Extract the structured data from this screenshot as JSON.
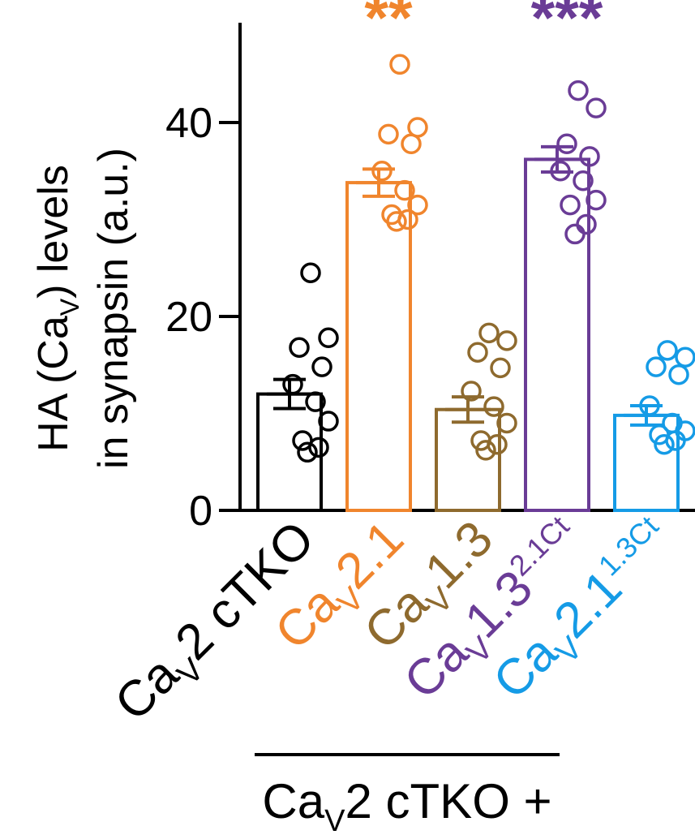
{
  "chart_data": {
    "type": "bar",
    "ylabel_line1": "HA (Ca",
    "ylabel_line1_sub": "V",
    "ylabel_line1_end": ") levels",
    "ylabel_line2": "in synapsin (a.u.)",
    "ylim": [
      0,
      50
    ],
    "yticks": [
      0,
      20,
      40
    ],
    "grid": false,
    "group_label": {
      "main": "Ca",
      "sub": "V",
      "end": "2 cTKO +"
    },
    "categories": [
      {
        "id": "cTKO",
        "label_main": "Ca",
        "label_sub": "V",
        "label_end": "2 cTKO",
        "label_sup": "",
        "color": "#000000",
        "mean": 12.0,
        "sem": 1.5,
        "significance": "",
        "points": [
          24.5,
          17.8,
          16.8,
          14.8,
          13.0,
          11.2,
          9.2,
          7.2,
          6.5,
          6.0
        ]
      },
      {
        "id": "Cav2.1",
        "label_main": "Ca",
        "label_sub": "V",
        "label_end": "2.1",
        "label_sup": "",
        "color": "#F0852D",
        "mean": 33.8,
        "sem": 1.4,
        "significance": "**",
        "points": [
          46.0,
          39.5,
          38.8,
          37.8,
          35.0,
          33.0,
          31.5,
          30.5,
          30.0,
          29.8
        ]
      },
      {
        "id": "Cav1.3",
        "label_main": "Ca",
        "label_sub": "V",
        "label_end": "1.3",
        "label_sup": "",
        "color": "#8E6A2E",
        "mean": 10.4,
        "sem": 1.3,
        "significance": "",
        "points": [
          18.3,
          17.5,
          16.3,
          14.7,
          12.3,
          10.7,
          9.0,
          7.2,
          6.8,
          6.2
        ]
      },
      {
        "id": "Cav1.3-2.1Ct",
        "label_main": "Ca",
        "label_sub": "V",
        "label_end": "1.3",
        "label_sup": "2.1Ct",
        "color": "#6A3C96",
        "mean": 36.2,
        "sem": 1.3,
        "significance": "***",
        "points": [
          43.3,
          41.5,
          37.8,
          36.5,
          35.0,
          34.0,
          32.0,
          31.5,
          29.5,
          28.5
        ]
      },
      {
        "id": "Cav2.1-1.3Ct",
        "label_main": "Ca",
        "label_sub": "V",
        "label_end": "2.1",
        "label_sup": "1.3Ct",
        "color": "#159BE6",
        "mean": 9.8,
        "sem": 1.0,
        "significance": "",
        "points": [
          16.5,
          15.8,
          14.8,
          14.0,
          10.8,
          9.0,
          8.2,
          7.8,
          7.2,
          6.8
        ]
      }
    ]
  }
}
